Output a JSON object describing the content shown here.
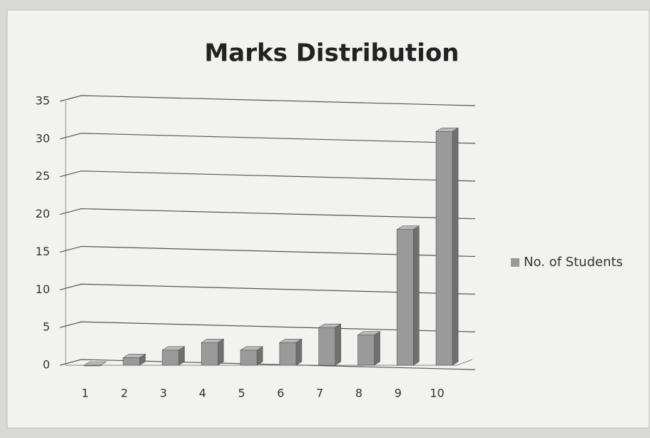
{
  "chart_data": {
    "type": "bar",
    "title": "Marks Distribution",
    "categories": [
      "1",
      "2",
      "3",
      "4",
      "5",
      "6",
      "7",
      "8",
      "9",
      "10"
    ],
    "series": [
      {
        "name": "No. of Students",
        "color": "#9a9a9a",
        "values": [
          0,
          1,
          2,
          3,
          2,
          3,
          5,
          4,
          18,
          31
        ]
      }
    ],
    "ylim": [
      0,
      35
    ],
    "yticks": [
      0,
      5,
      10,
      15,
      20,
      25,
      30,
      35
    ],
    "grid": true,
    "legend": "right"
  }
}
